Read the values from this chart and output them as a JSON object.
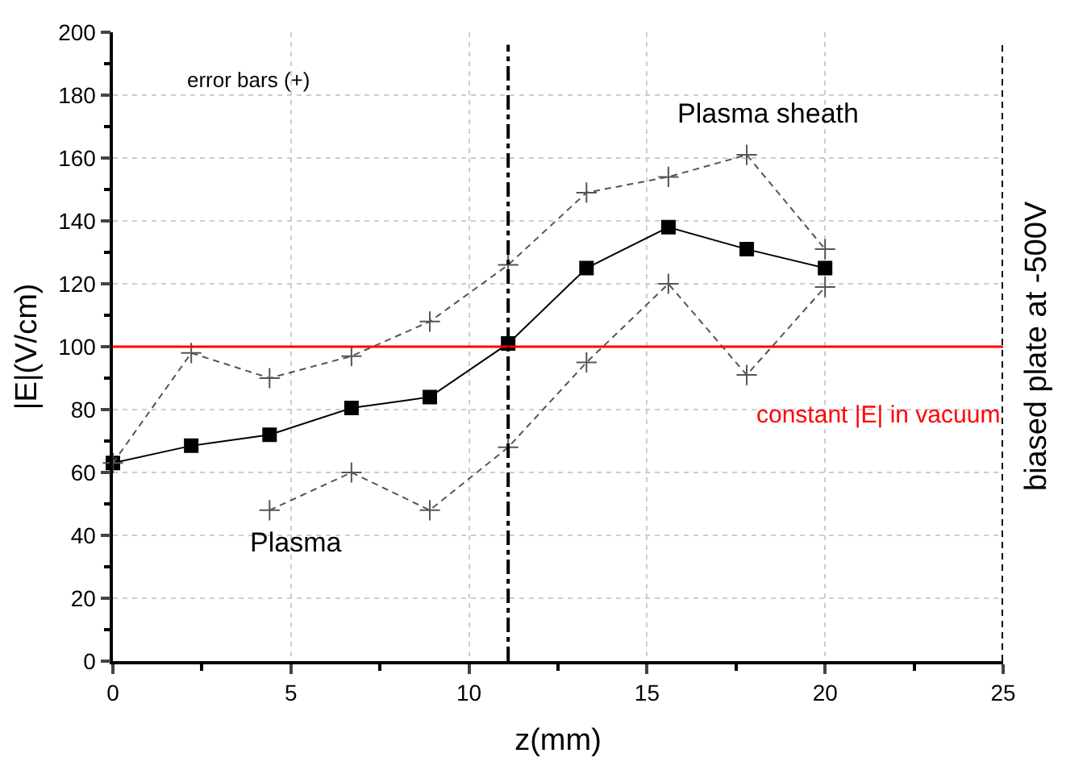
{
  "chart_data": {
    "type": "line",
    "xlabel": "z(mm)",
    "ylabel": "|E|(V/cm)",
    "xlim": [
      0,
      25
    ],
    "xticks": [
      0,
      5,
      10,
      15,
      20,
      25
    ],
    "ylim": [
      0,
      200
    ],
    "yticks": [
      0,
      20,
      40,
      60,
      80,
      100,
      120,
      140,
      160,
      180,
      200
    ],
    "grid": true,
    "series": [
      {
        "color": "#000000",
        "marker": "square",
        "line_style": "solid",
        "x": [
          0,
          2.2,
          4.4,
          6.7,
          8.9,
          11.1,
          13.3,
          15.6,
          17.8,
          20
        ],
        "values": [
          63,
          68.5,
          72,
          80.5,
          84,
          101,
          125,
          138,
          131,
          125
        ]
      },
      {
        "color": "#555555",
        "marker": "cross",
        "line_style": "dashed",
        "x": [
          0,
          2.2,
          4.4,
          6.7,
          8.9,
          11.1,
          13.3,
          15.6,
          17.8,
          20
        ],
        "values": [
          63,
          98,
          90,
          97,
          108,
          126,
          149,
          154,
          161,
          131
        ]
      },
      {
        "color": "#555555",
        "marker": "cross",
        "line_style": "dashed",
        "x": [
          4.4,
          6.7,
          8.9,
          11.1,
          13.3,
          15.6,
          17.8,
          20
        ],
        "values": [
          48,
          60,
          48,
          68,
          95,
          120,
          91,
          119
        ]
      }
    ],
    "ref_lines": [
      {
        "axis": "y",
        "value": 100,
        "label": "constant |E| in vacuum",
        "color": "#ff0000",
        "line_style": "solid"
      },
      {
        "axis": "x",
        "value": 11.1,
        "color": "#000000",
        "line_style": "dashdot"
      },
      {
        "axis": "x",
        "value": 25,
        "label": "biased plate at -500V",
        "color": "#000000",
        "line_style": "dashed"
      }
    ],
    "annotations": [
      "error bars (+)",
      "Plasma sheath",
      "Plasma"
    ]
  }
}
